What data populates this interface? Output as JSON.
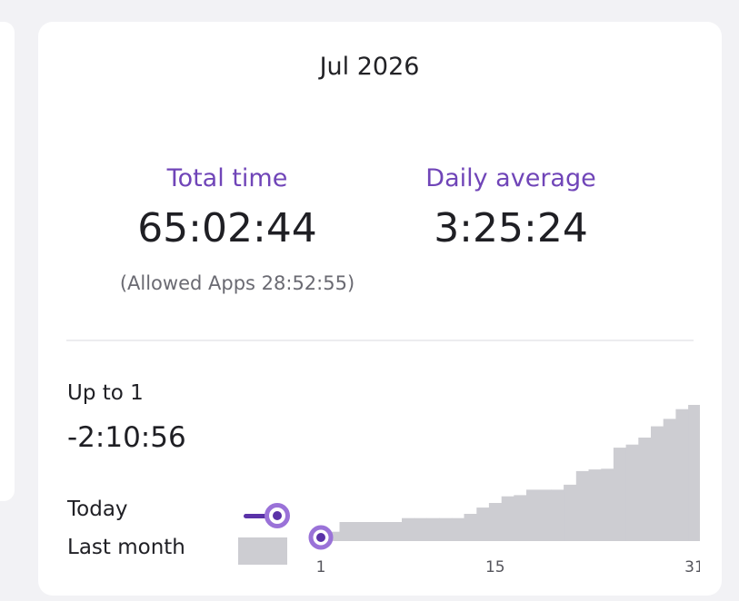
{
  "header": {
    "month": "Jul 2026"
  },
  "stats": {
    "total_label": "Total time",
    "total_value": "65:02:44",
    "allowed_note": "(Allowed Apps 28:52:55)",
    "average_label": "Daily average",
    "average_value": "3:25:24"
  },
  "comparison": {
    "upto_label": "Up to 1",
    "difference": "-2:10:56"
  },
  "legend": {
    "today": "Today",
    "last_month": "Last month"
  },
  "colors": {
    "accent": "#7045b8",
    "today_line": "#5a32a8",
    "today_ring": "#9a72d8",
    "last_month_fill": "#cdcdd2"
  },
  "chart_data": {
    "type": "area",
    "x": [
      1,
      2,
      3,
      4,
      5,
      6,
      7,
      8,
      9,
      10,
      11,
      12,
      13,
      14,
      15,
      16,
      17,
      18,
      19,
      20,
      21,
      22,
      23,
      24,
      25,
      26,
      27,
      28,
      29,
      30,
      31
    ],
    "series": [
      {
        "name": "Last month",
        "style": "step-area",
        "values": [
          0.5,
          2.4,
          4.9,
          4.9,
          4.9,
          4.9,
          4.9,
          5.9,
          5.9,
          5.9,
          5.9,
          5.9,
          7.0,
          8.6,
          9.8,
          11.5,
          11.8,
          13.2,
          13.2,
          13.2,
          14.5,
          18.0,
          18.4,
          18.6,
          24.0,
          24.8,
          26.6,
          29.5,
          31.4,
          33.9,
          35.0
        ]
      },
      {
        "name": "Today",
        "style": "marker",
        "values": [
          {
            "x": 1,
            "y": 0
          }
        ]
      }
    ],
    "xticks": [
      "1",
      "15",
      "31"
    ],
    "xlim": [
      1,
      31
    ],
    "ylim": [
      0,
      35
    ],
    "grid": false,
    "legend_position": "bottom-left"
  }
}
